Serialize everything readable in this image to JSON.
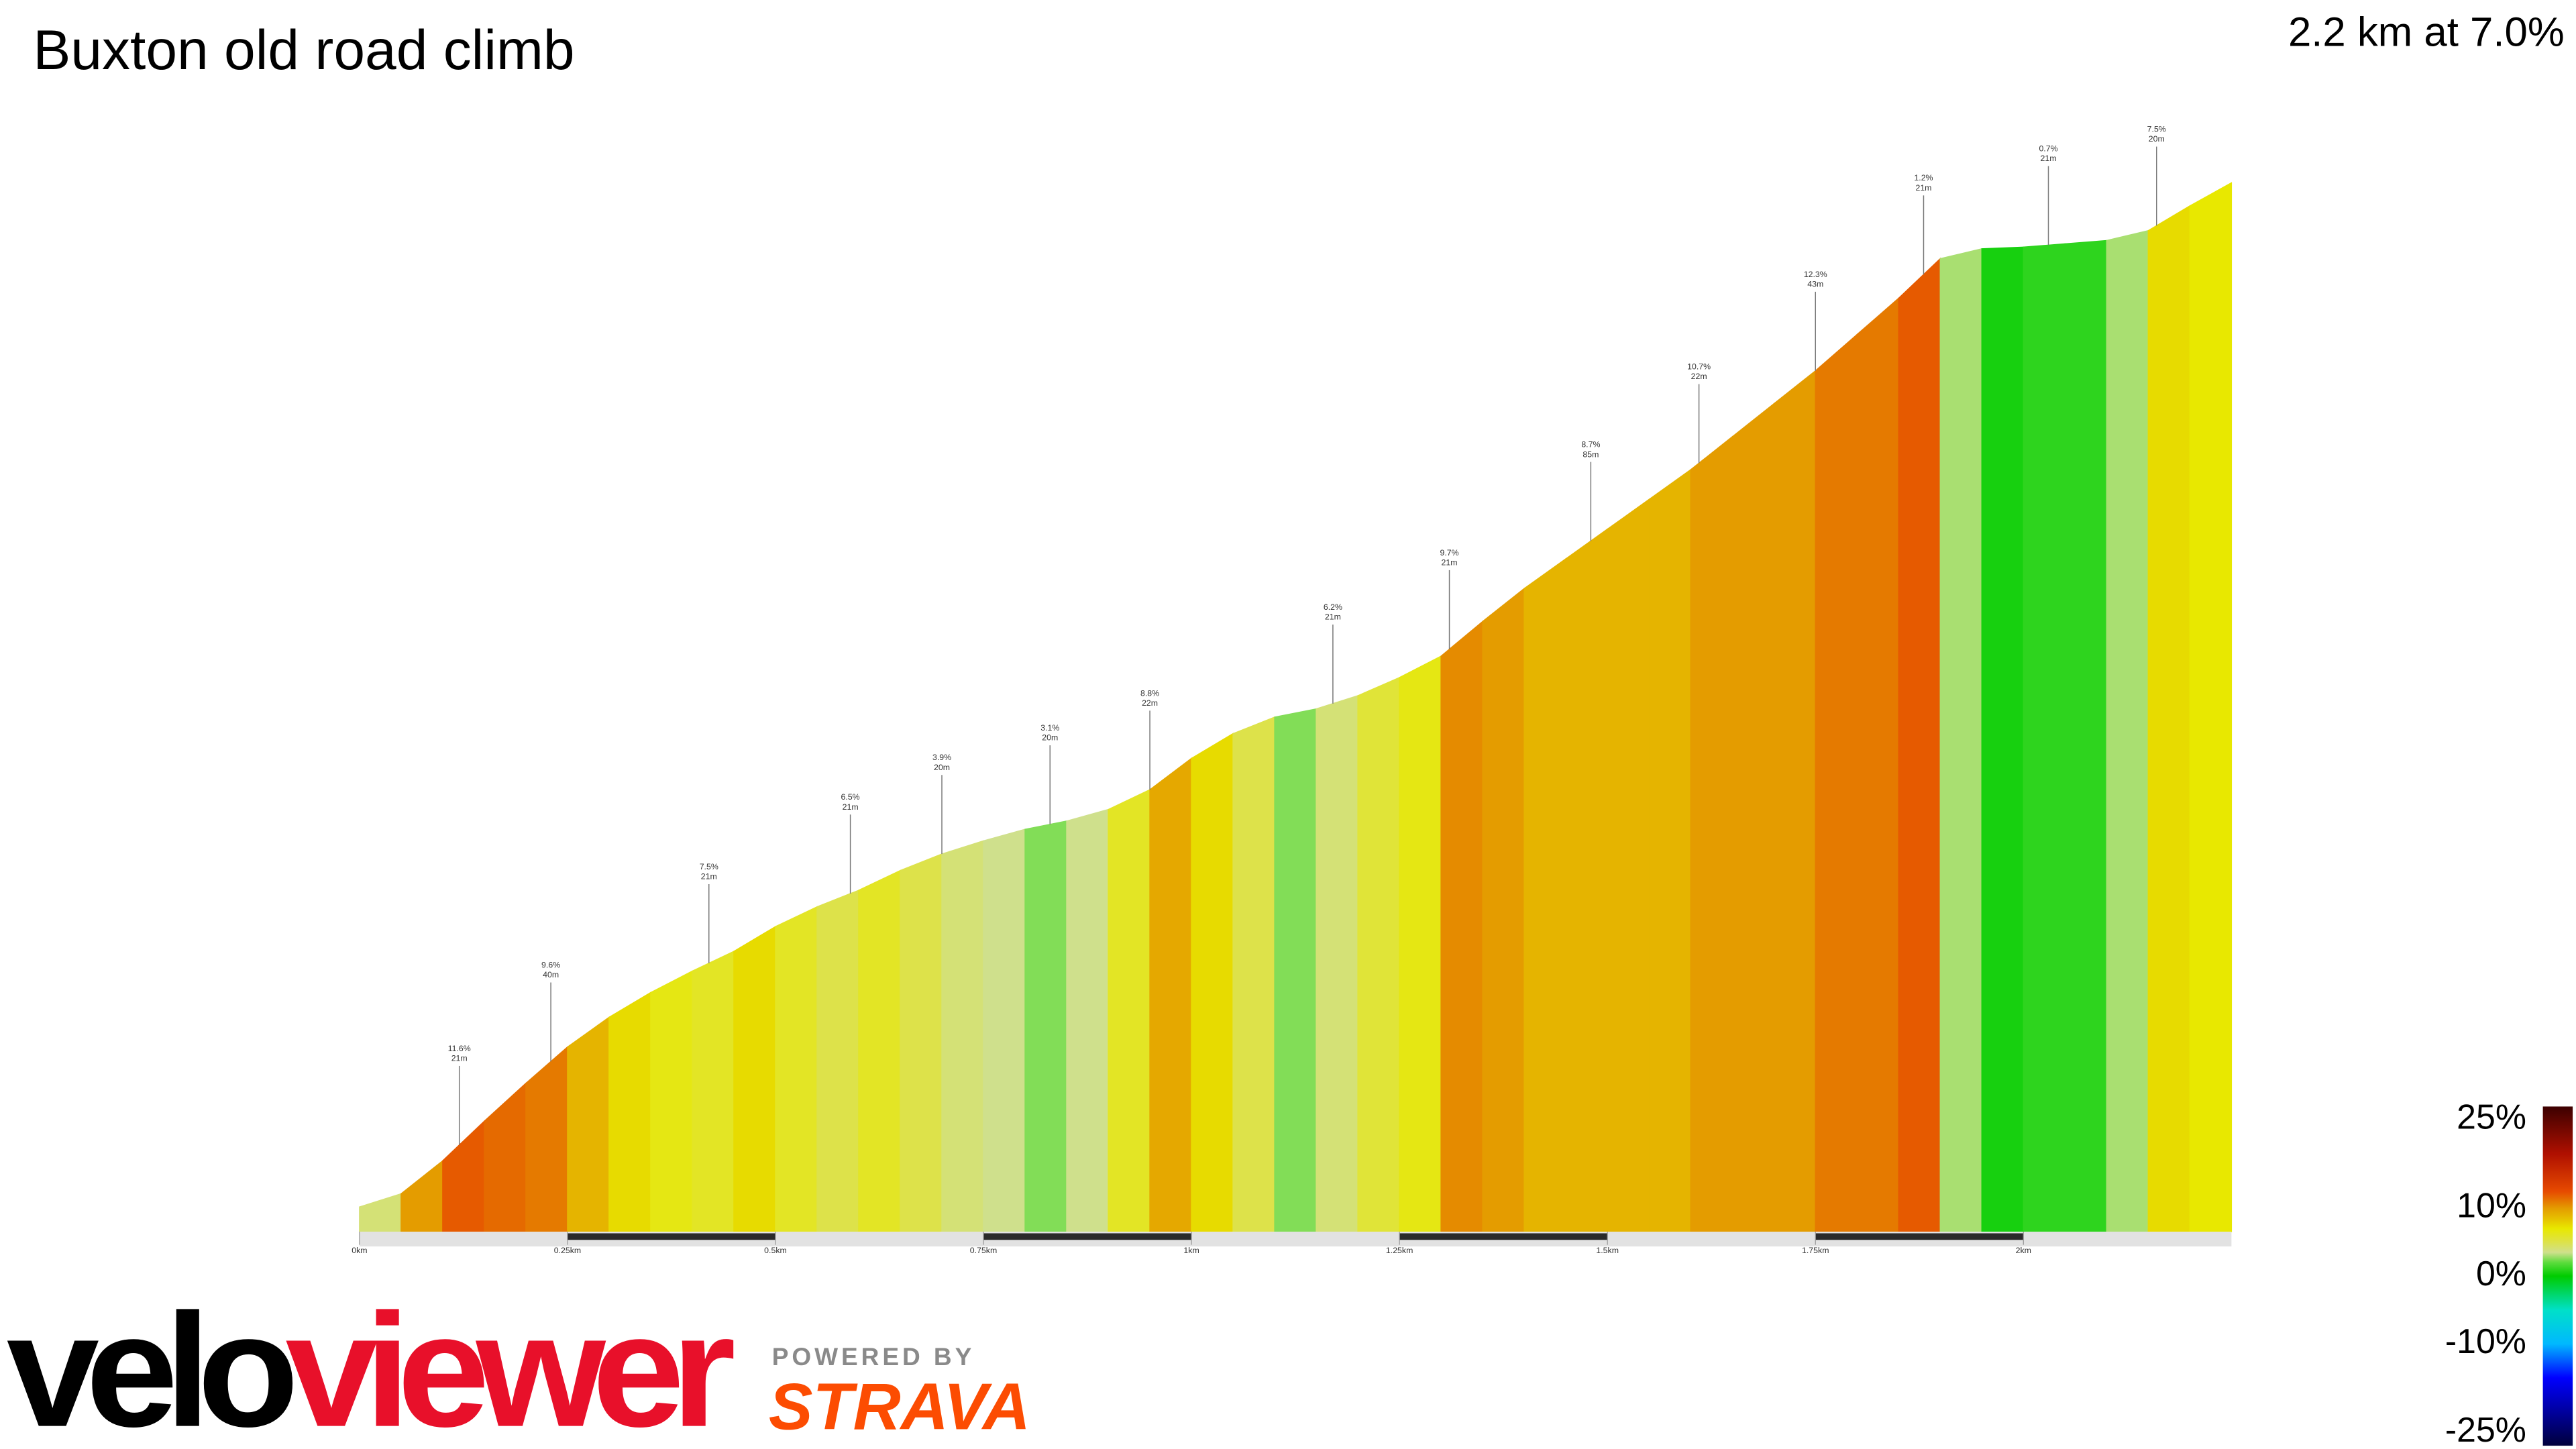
{
  "chart_data": {
    "type": "climb-profile",
    "title": "Buxton old road climb",
    "subtitle": "2.2 km at 7.0%",
    "xlim": [
      0,
      2.25
    ],
    "xticks": [
      {
        "value": 0,
        "label": "0km"
      },
      {
        "value": 0.25,
        "label": "0.25km"
      },
      {
        "value": 0.5,
        "label": "0.5km"
      },
      {
        "value": 0.75,
        "label": "0.75km"
      },
      {
        "value": 1,
        "label": "1km"
      },
      {
        "value": 1.25,
        "label": "1.25km"
      },
      {
        "value": 1.5,
        "label": "1.5km"
      },
      {
        "value": 1.75,
        "label": "1.75km"
      },
      {
        "value": 2,
        "label": "2km"
      }
    ],
    "x": [
      0,
      0.05,
      0.1,
      0.15,
      0.2,
      0.25,
      0.3,
      0.35,
      0.4,
      0.45,
      0.5,
      0.55,
      0.6,
      0.65,
      0.7,
      0.75,
      0.8,
      0.85,
      0.9,
      0.95,
      1,
      1.05,
      1.1,
      1.15,
      1.2,
      1.25,
      1.3,
      1.35,
      1.4,
      1.45,
      1.5,
      1.55,
      1.6,
      1.65,
      1.7,
      1.75,
      1.8,
      1.85,
      1.9,
      1.95,
      2,
      2.05,
      2.1,
      2.15,
      2.2
    ],
    "values": [
      4,
      10,
      12,
      11.5,
      11,
      9,
      7.5,
      6.5,
      6,
      7.5,
      6,
      5,
      6,
      5,
      4,
      3.5,
      2.5,
      3.5,
      6,
      9.5,
      7.5,
      5,
      2.5,
      4,
      5.5,
      6.5,
      10.5,
      10,
      9,
      9,
      9,
      9,
      10,
      10,
      10,
      11,
      11,
      12,
      3,
      0.5,
      1,
      1,
      3,
      7.5,
      7
    ],
    "annotations": [
      {
        "x": 0.12,
        "grade": "11.6%",
        "length": "21m"
      },
      {
        "x": 0.23,
        "grade": "9.6%",
        "length": "40m"
      },
      {
        "x": 0.42,
        "grade": "7.5%",
        "length": "21m"
      },
      {
        "x": 0.59,
        "grade": "6.5%",
        "length": "21m"
      },
      {
        "x": 0.7,
        "grade": "3.9%",
        "length": "20m"
      },
      {
        "x": 0.83,
        "grade": "3.1%",
        "length": "20m"
      },
      {
        "x": 0.95,
        "grade": "8.8%",
        "length": "22m"
      },
      {
        "x": 1.17,
        "grade": "6.2%",
        "length": "21m"
      },
      {
        "x": 1.31,
        "grade": "9.7%",
        "length": "21m"
      },
      {
        "x": 1.48,
        "grade": "8.7%",
        "length": "85m"
      },
      {
        "x": 1.61,
        "grade": "10.7%",
        "length": "22m"
      },
      {
        "x": 1.75,
        "grade": "12.3%",
        "length": "43m"
      },
      {
        "x": 1.88,
        "grade": "1.2%",
        "length": "21m"
      },
      {
        "x": 2.03,
        "grade": "0.7%",
        "length": "21m"
      },
      {
        "x": 2.16,
        "grade": "7.5%",
        "length": "20m"
      }
    ],
    "colorscale": [
      {
        "value": -25,
        "color": "#00003c"
      },
      {
        "value": -15,
        "color": "#0000ff"
      },
      {
        "value": -10,
        "color": "#00b8ff"
      },
      {
        "value": -5,
        "color": "#00e0c8"
      },
      {
        "value": 0,
        "color": "#00cc00"
      },
      {
        "value": 2,
        "color": "#5cdc3c"
      },
      {
        "value": 3.5,
        "color": "#cfe08c"
      },
      {
        "value": 5,
        "color": "#dde24a"
      },
      {
        "value": 7,
        "color": "#e8e800"
      },
      {
        "value": 8.5,
        "color": "#e6c000"
      },
      {
        "value": 10,
        "color": "#e49c00"
      },
      {
        "value": 11,
        "color": "#e57a00"
      },
      {
        "value": 12.5,
        "color": "#e64a00"
      },
      {
        "value": 18,
        "color": "#b01000"
      },
      {
        "value": 25,
        "color": "#3c0000"
      }
    ],
    "colorbar_ticks": [
      {
        "value": 25,
        "label": "25%"
      },
      {
        "value": 10,
        "label": "10%"
      },
      {
        "value": 0,
        "label": "0%"
      },
      {
        "value": -10,
        "label": "-10%"
      },
      {
        "value": -25,
        "label": "-25%"
      }
    ]
  },
  "branding": {
    "logo_left": "velo",
    "logo_right": "viewer",
    "powered": "POWERED BY",
    "strava": "STRAVA"
  }
}
